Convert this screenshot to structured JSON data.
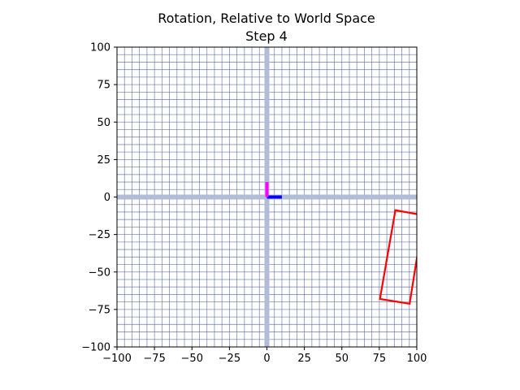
{
  "chart_data": {
    "type": "line",
    "title": "Rotation, Relative to World Space",
    "subtitle": "Step 4",
    "xlabel": "",
    "ylabel": "",
    "xlim": [
      -100,
      100
    ],
    "ylim": [
      -100,
      100
    ],
    "x_ticks": [
      "−100",
      "−75",
      "−50",
      "−25",
      "0",
      "25",
      "50",
      "75",
      "100"
    ],
    "y_ticks": [
      "100",
      "75",
      "50",
      "25",
      "0",
      "−25",
      "−50",
      "−75",
      "−100"
    ],
    "x_tick_values": [
      -100,
      -75,
      -50,
      -25,
      0,
      25,
      50,
      75,
      100
    ],
    "y_tick_values": [
      100,
      75,
      50,
      25,
      0,
      -25,
      -50,
      -75,
      -100
    ],
    "grid": true,
    "grid_step": 5,
    "colors": {
      "grid": "#5a6aa0",
      "world_axes": "#b0bcd8",
      "x_axis_marker": "#0000ff",
      "y_axis_marker": "#ff00ff",
      "shape": "#ff0000"
    },
    "series": [
      {
        "closed": true,
        "x": [
          85.7,
          104.6,
          95.2,
          75.4
        ],
        "y": [
          -8.8,
          -12.2,
          -71.2,
          -68.0
        ]
      }
    ],
    "axis_markers": [
      {
        "x": [
          0,
          10
        ],
        "y": [
          0,
          0
        ]
      },
      {
        "x": [
          0,
          0
        ],
        "y": [
          0,
          10
        ]
      }
    ]
  }
}
